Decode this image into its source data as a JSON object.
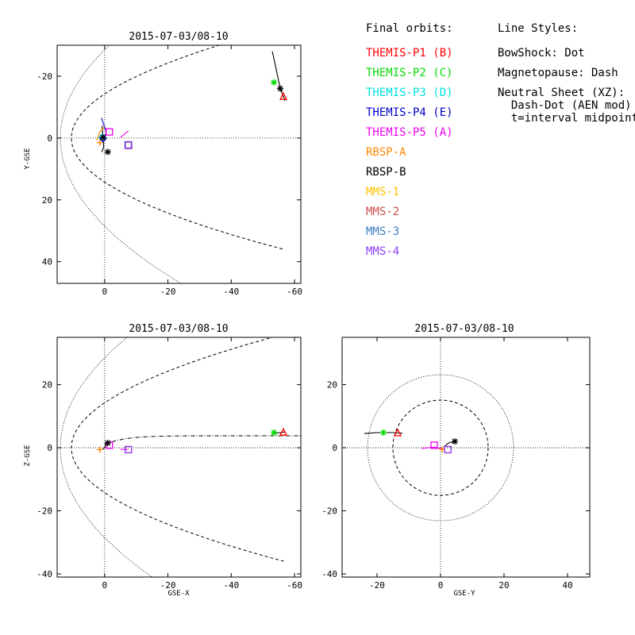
{
  "chart_data": [
    {
      "type": "scatter",
      "panel": "xy",
      "title": "2015-07-03/08-10",
      "xlabel": "",
      "ylabel": "Y-GSE",
      "xlim": [
        15,
        -62
      ],
      "ylim": [
        -30,
        47
      ],
      "y_inverted": true,
      "xticks": [
        0,
        -20,
        -40,
        -60
      ],
      "yticks": [
        -20,
        0,
        20,
        40
      ],
      "xtick_labels": [
        "0",
        "-20",
        "-40",
        "-60"
      ],
      "ytick_labels": [
        "-20",
        "0",
        "20",
        "40"
      ],
      "grid": "dotted zero lines",
      "series": [
        {
          "name": "THEMIS-P1 (B)",
          "color": "#ff0000",
          "marker": "triangle",
          "x": [
            -56.5
          ],
          "y": [
            -13.5
          ]
        },
        {
          "name": "THEMIS-P2 (C)",
          "color": "#00dd00",
          "marker": "asterisk",
          "x": [
            -53.5
          ],
          "y": [
            -18
          ]
        },
        {
          "name": "THEMIS-P3 (D)",
          "color": "#00e0e0",
          "marker": "diamond",
          "x": [
            0.8
          ],
          "y": [
            -0.3
          ]
        },
        {
          "name": "THEMIS-P4 (E)",
          "color": "#0000cc",
          "marker": "diamond",
          "x": [
            0.5
          ],
          "y": [
            0.2
          ]
        },
        {
          "name": "THEMIS-P5 (A)",
          "color": "#ee00ee",
          "marker": "square",
          "x": [
            -1.5
          ],
          "y": [
            -2
          ]
        },
        {
          "name": "RBSP-A",
          "color": "#ff8800",
          "marker": "plus",
          "x": [
            1.5
          ],
          "y": [
            1.5
          ]
        },
        {
          "name": "RBSP-B",
          "color": "#000000",
          "marker": "asterisk",
          "x": [
            -1
          ],
          "y": [
            4.5
          ]
        },
        {
          "name": "MMS-1",
          "color": "#ffc000",
          "marker": "square",
          "x": [
            -7.5
          ],
          "y": [
            2.3
          ]
        },
        {
          "name": "MMS-2",
          "color": "#d05050",
          "marker": "square",
          "x": [
            -7.6
          ],
          "y": [
            2.4
          ]
        },
        {
          "name": "MMS-3",
          "color": "#4080c0",
          "marker": "square",
          "x": [
            -7.4
          ],
          "y": [
            2.2
          ]
        },
        {
          "name": "MMS-4",
          "color": "#9040ff",
          "marker": "square",
          "x": [
            -7.5
          ],
          "y": [
            2.3
          ]
        }
      ],
      "extra_markers": [
        {
          "color": "#000000",
          "marker": "asterisk",
          "x": [
            -55.5,
            0.5
          ],
          "y": [
            -16,
            -0.2
          ]
        }
      ]
    },
    {
      "type": "scatter",
      "panel": "xz",
      "title": "2015-07-03/08-10",
      "xlabel": "GSE-X",
      "ylabel": "Z-GSE",
      "xlim": [
        15,
        -62
      ],
      "ylim": [
        -41,
        35
      ],
      "xticks": [
        0,
        -20,
        -40,
        -60
      ],
      "yticks": [
        -40,
        -20,
        0,
        20
      ],
      "xtick_labels": [
        "0",
        "-20",
        "-40",
        "-60"
      ],
      "ytick_labels": [
        "-40",
        "-20",
        "0",
        "20"
      ],
      "grid": "dotted zero lines",
      "series": [
        {
          "name": "THEMIS-P1 (B)",
          "color": "#ff0000",
          "marker": "triangle",
          "x": [
            -56.5
          ],
          "y": [
            5
          ]
        },
        {
          "name": "THEMIS-P2 (C)",
          "color": "#00dd00",
          "marker": "asterisk",
          "x": [
            -53.5
          ],
          "y": [
            4.8
          ]
        },
        {
          "name": "THEMIS-P5 (A)",
          "color": "#ee00ee",
          "marker": "square",
          "x": [
            -1.5
          ],
          "y": [
            0.8
          ]
        },
        {
          "name": "RBSP-A",
          "color": "#ff8800",
          "marker": "plus",
          "x": [
            1.5
          ],
          "y": [
            -0.6
          ]
        },
        {
          "name": "RBSP-B",
          "color": "#000000",
          "marker": "asterisk",
          "x": [
            -1
          ],
          "y": [
            1.5
          ]
        },
        {
          "name": "MMS-2",
          "color": "#d05050",
          "marker": "square",
          "x": [
            -7.5
          ],
          "y": [
            -0.6
          ]
        },
        {
          "name": "MMS-4",
          "color": "#9040ff",
          "marker": "square",
          "x": [
            -7.5
          ],
          "y": [
            -0.6
          ]
        }
      ]
    },
    {
      "type": "scatter",
      "panel": "yz",
      "title": "2015-07-03/08-10",
      "xlabel": "GSE-Y",
      "ylabel": "",
      "xlim": [
        -31,
        47
      ],
      "ylim": [
        -41,
        35
      ],
      "xticks": [
        -20,
        0,
        20,
        40
      ],
      "yticks": [
        -40,
        -20,
        0,
        20
      ],
      "xtick_labels": [
        "-20",
        "0",
        "20",
        "40"
      ],
      "ytick_labels": [
        "-40",
        "-20",
        "0",
        "20"
      ],
      "grid": "dotted zero lines",
      "series": [
        {
          "name": "THEMIS-P1 (B)",
          "color": "#ff0000",
          "marker": "triangle",
          "x": [
            -13.5
          ],
          "y": [
            4.8
          ]
        },
        {
          "name": "THEMIS-P2 (C)",
          "color": "#00dd00",
          "marker": "asterisk",
          "x": [
            -18
          ],
          "y": [
            4.8
          ]
        },
        {
          "name": "THEMIS-P5 (A)",
          "color": "#ee00ee",
          "marker": "square",
          "x": [
            -2
          ],
          "y": [
            0.8
          ]
        },
        {
          "name": "RBSP-A",
          "color": "#ff8800",
          "marker": "plus",
          "x": [
            0.5
          ],
          "y": [
            -0.5
          ]
        },
        {
          "name": "RBSP-B",
          "color": "#000000",
          "marker": "asterisk",
          "x": [
            4.5
          ],
          "y": [
            2
          ]
        },
        {
          "name": "MMS-2",
          "color": "#d05050",
          "marker": "square",
          "x": [
            2.3
          ],
          "y": [
            -0.6
          ]
        },
        {
          "name": "MMS-4",
          "color": "#9040ff",
          "marker": "square",
          "x": [
            2.3
          ],
          "y": [
            -0.6
          ]
        }
      ]
    }
  ],
  "legend": {
    "title": "Final orbits:",
    "items": [
      {
        "label": "THEMIS-P1 (B)",
        "color": "#ff0000"
      },
      {
        "label": "THEMIS-P2 (C)",
        "color": "#00dd00"
      },
      {
        "label": "THEMIS-P3 (D)",
        "color": "#00e0e0"
      },
      {
        "label": "THEMIS-P4 (E)",
        "color": "#0000cc"
      },
      {
        "label": "THEMIS-P5 (A)",
        "color": "#ee00ee"
      },
      {
        "label": "RBSP-A",
        "color": "#ff8800"
      },
      {
        "label": "RBSP-B",
        "color": "#000000"
      },
      {
        "label": "MMS-1",
        "color": "#ffc000"
      },
      {
        "label": "MMS-2",
        "color": "#d05050"
      },
      {
        "label": "MMS-3",
        "color": "#4080c0"
      },
      {
        "label": "MMS-4",
        "color": "#9040ff"
      }
    ]
  },
  "line_styles": {
    "title": "Line Styles:",
    "lines": [
      "BowShock: Dot",
      "Magnetopause: Dash",
      "Neutral Sheet (XZ):",
      "  Dash-Dot (AEN mod)",
      "  t=interval midpoint"
    ]
  }
}
